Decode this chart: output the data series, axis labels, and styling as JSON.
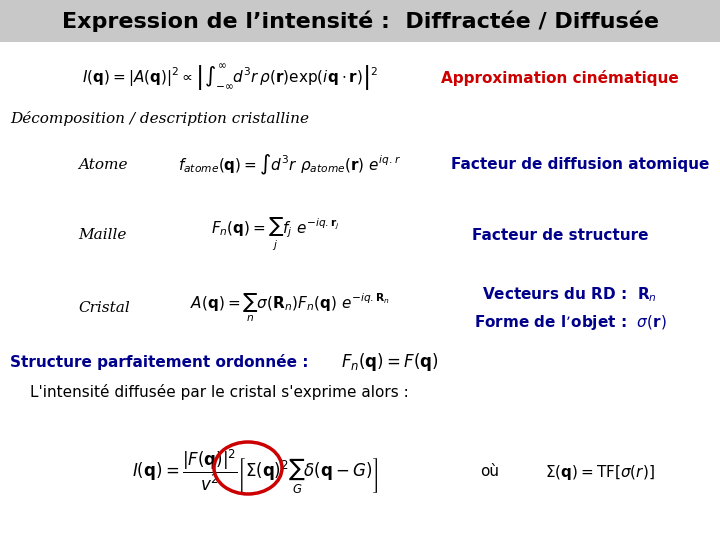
{
  "bg_color": "#ffffff",
  "title_bg": "#c8c8c8",
  "title": "Expression de l’intensité :  Diffractée / Diffusée",
  "title_color": "#000000",
  "title_fontsize": 16,
  "approx_text": "Approximation cinématique",
  "approx_color": "#cc0000",
  "decomp_text": "Décomposition / description cristalline",
  "atome_label": "Atome",
  "atome_right": "Facteur de diffusion atomique",
  "maille_label": "Maille",
  "maille_right": "Facteur de structure",
  "cristal_label": "Cristal",
  "cristal_right1": "Vecteurs du RD :  $\\mathbf{R}_n$",
  "cristal_right2": "Forme de l’objet :  $\\sigma(\\mathbf{r})$",
  "struct_text": "Structure parfaitement ordonnée :",
  "struct_color": "#00008b",
  "intensity_intro": "L'intensité diffusée par le cristal s'exprime alors :",
  "ou_text": "où",
  "right_color": "#00008b",
  "label_italic_color": "#000000",
  "red_circle_color": "#cc0000"
}
